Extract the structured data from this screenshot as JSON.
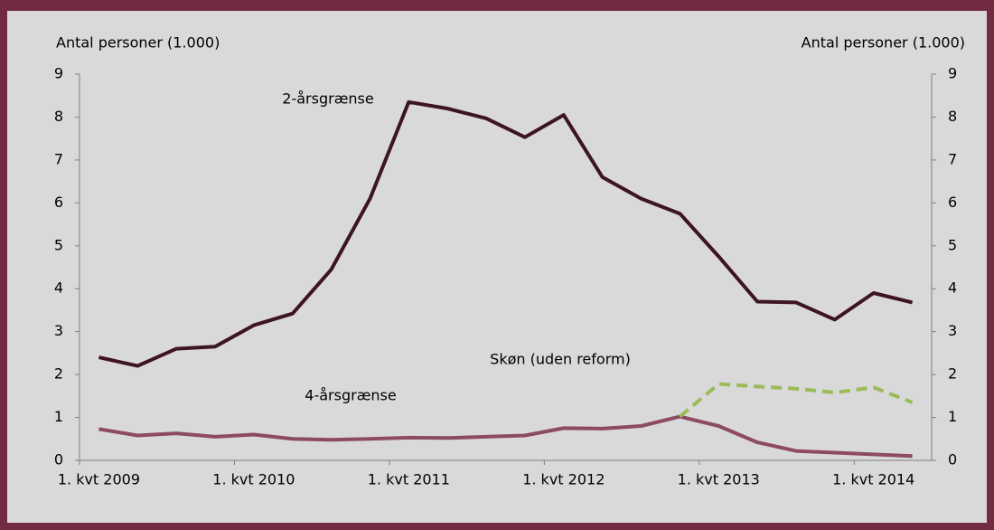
{
  "chart_data": {
    "type": "line",
    "y_label": "Antal personer (1.000)",
    "y2_label": "Antal personer (1.000)",
    "categories": [
      "1. kvt 2009",
      null,
      null,
      null,
      "1. kvt 2010",
      null,
      null,
      null,
      "1. kvt 2011",
      null,
      null,
      null,
      "1. kvt 2012",
      null,
      null,
      null,
      "1. kvt 2013",
      null,
      null,
      null,
      "1. kvt 2014",
      null
    ],
    "series": [
      {
        "name": "2-årsgrænse",
        "color": "#3d1423",
        "dashed": false,
        "values": [
          2.4,
          2.2,
          2.6,
          2.65,
          3.15,
          3.42,
          4.45,
          6.1,
          8.35,
          8.2,
          7.97,
          7.53,
          8.05,
          6.6,
          6.1,
          5.75,
          4.75,
          3.7,
          3.68,
          3.28,
          3.9,
          3.68
        ]
      },
      {
        "name": "4-årsgrænse",
        "color": "#8c4a63",
        "dashed": false,
        "values": [
          0.73,
          0.58,
          0.63,
          0.55,
          0.6,
          0.5,
          0.48,
          0.5,
          0.53,
          0.52,
          0.55,
          0.58,
          0.75,
          0.74,
          0.8,
          1.02,
          0.8,
          0.42,
          0.22,
          0.18,
          0.14,
          0.1
        ]
      },
      {
        "name": "Skøn (uden reform)",
        "color": "#9bbb59",
        "dashed": true,
        "axis": "y2",
        "values": [
          null,
          null,
          null,
          null,
          null,
          null,
          null,
          null,
          null,
          null,
          null,
          null,
          null,
          null,
          null,
          1.02,
          1.78,
          1.72,
          1.67,
          1.58,
          1.7,
          1.35
        ]
      }
    ],
    "ylim": [
      0,
      9
    ],
    "yticks": [
      0,
      1,
      2,
      3,
      4,
      5,
      6,
      7,
      8,
      9
    ],
    "y2lim": [
      0,
      9
    ],
    "y2ticks": [
      0,
      1,
      2,
      3,
      4,
      5,
      6,
      7,
      8,
      9
    ]
  }
}
